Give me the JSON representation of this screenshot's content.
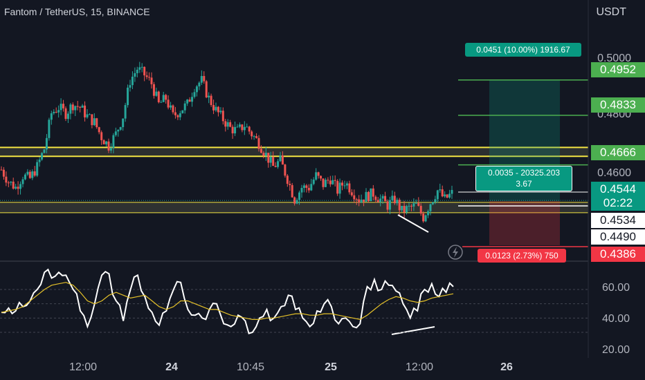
{
  "header": {
    "title": "Fantom / TetherUS, 15, BINANCE",
    "currency": "USDT"
  },
  "colors": {
    "background": "#131722",
    "up": "#26a69a",
    "down": "#ef5350",
    "yellow": "#f5e642",
    "green_line": "#4caf50",
    "red_line": "#f23645",
    "rsi": "#ffffff",
    "rsi_ma": "#e6c229"
  },
  "price_axis": {
    "ticks": [
      "0.5000",
      "0.4800",
      "0.4600"
    ]
  },
  "rsi_axis": {
    "ticks": [
      "60.00",
      "40.00",
      "20.00"
    ]
  },
  "time_axis": {
    "ticks": [
      "12:00",
      "24",
      "10:45",
      "25",
      "12:00",
      "26"
    ]
  },
  "tags": {
    "tp3": "0.4952",
    "tp2": "0.4833",
    "tp1": "0.4666",
    "current": "0.4544",
    "countdown": "02:22",
    "level_a": "0.4534",
    "level_b": "0.4490",
    "stop": "0.4386"
  },
  "position": {
    "target_label": "0.0451 (10.00%) 1916.67",
    "info_line1": "0.0035 - 20325.203",
    "info_line2": "3.67",
    "stop_label": "0.0123 (2.73%) 750"
  },
  "chart_data": {
    "type": "candlestick",
    "title": "Fantom / TetherUS, 15, BINANCE",
    "y_unit": "USDT",
    "ylim": [
      0.4365,
      0.504
    ],
    "levels": {
      "resistance_zone": [
        0.4695,
        0.4725
      ],
      "support_zone": [
        0.4505,
        0.454
      ],
      "take_profits": [
        0.4952,
        0.4833,
        0.4666
      ],
      "entry": 0.4544,
      "stop": 0.4386
    },
    "price_path": [
      0.465,
      0.461,
      0.459,
      0.463,
      0.462,
      0.466,
      0.472,
      0.484,
      0.486,
      0.484,
      0.487,
      0.486,
      0.483,
      0.481,
      0.476,
      0.473,
      0.477,
      0.483,
      0.495,
      0.499,
      0.497,
      0.494,
      0.487,
      0.489,
      0.483,
      0.485,
      0.487,
      0.493,
      0.495,
      0.489,
      0.485,
      0.482,
      0.479,
      0.478,
      0.48,
      0.477,
      0.474,
      0.47,
      0.466,
      0.468,
      0.462,
      0.455,
      0.459,
      0.459,
      0.463,
      0.46,
      0.462,
      0.458,
      0.461,
      0.458,
      0.455,
      0.456,
      0.457,
      0.455,
      0.453,
      0.455,
      0.451,
      0.452,
      0.453,
      0.449,
      0.454,
      0.458,
      0.455,
      0.457
    ],
    "rsi": {
      "ylim": [
        15,
        75
      ],
      "values": [
        44,
        47,
        45,
        48,
        52,
        60,
        72,
        68,
        72,
        70,
        60,
        45,
        34,
        50,
        70,
        71,
        52,
        38,
        60,
        70,
        55,
        44,
        35,
        45,
        60,
        65,
        46,
        42,
        40,
        46,
        50,
        36,
        34,
        42,
        38,
        30,
        40,
        46,
        40,
        48,
        56,
        46,
        40,
        34,
        45,
        50,
        48,
        36,
        40,
        34,
        36,
        62,
        67,
        60,
        63,
        59,
        50,
        40,
        45,
        60,
        64,
        55,
        58,
        62
      ],
      "ma": [
        44,
        45,
        46,
        48,
        52,
        56,
        60,
        63,
        64,
        65,
        63,
        58,
        52,
        50,
        52,
        56,
        58,
        56,
        54,
        55,
        56,
        52,
        48,
        46,
        48,
        52,
        52,
        50,
        48,
        46,
        46,
        44,
        42,
        41,
        40,
        39,
        39,
        40,
        40,
        41,
        42,
        43,
        43,
        42,
        42,
        43,
        43,
        42,
        41,
        40,
        39,
        42,
        46,
        50,
        53,
        55,
        54,
        52,
        51,
        52,
        54,
        55,
        56,
        57
      ],
      "ticks": [
        60,
        40,
        20
      ]
    },
    "x_ticks": [
      "12:00",
      "24",
      "10:45",
      "25",
      "12:00",
      "26"
    ]
  }
}
